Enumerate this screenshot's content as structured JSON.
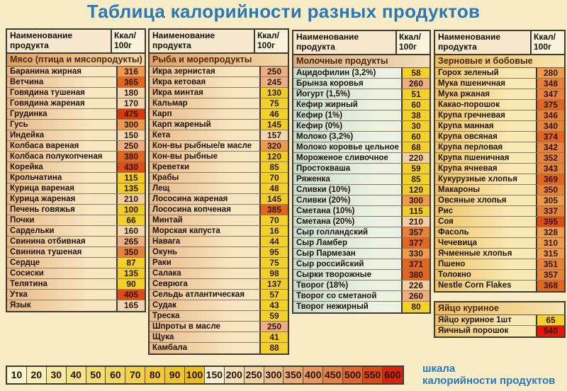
{
  "title": "Таблица калорийности разных продуктов",
  "header": {
    "name_line1": "Наименование",
    "name_line2": "продукта",
    "kcal_line1": "Ккал/",
    "kcal_line2": "100г"
  },
  "tables": [
    {
      "section": "Мясо (птица и мясопродукты)",
      "theme": "meat",
      "has_header": true,
      "slot": "col1",
      "rows": [
        [
          "Баранина жирная",
          316
        ],
        [
          "Ветчина",
          365
        ],
        [
          "Говядина тушеная",
          180
        ],
        [
          "Говядина жареная",
          170
        ],
        [
          "Грудинка",
          475
        ],
        [
          "Гусь",
          300
        ],
        [
          "Индейка",
          150
        ],
        [
          "Колбаса вареная",
          250
        ],
        [
          "Колбаса полукопченая",
          380
        ],
        [
          "Корейка",
          430
        ],
        [
          "Крольчатина",
          115
        ],
        [
          "Курица вареная",
          135
        ],
        [
          "Курица жареная",
          210
        ],
        [
          "Печень говяжья",
          100
        ],
        [
          "Почки",
          66
        ],
        [
          "Сардельки",
          160
        ],
        [
          "Свинина отбивная",
          265
        ],
        [
          "Свинина тушеная",
          350
        ],
        [
          "Сердце",
          87
        ],
        [
          "Сосиски",
          135
        ],
        [
          "Телятина",
          90
        ],
        [
          "Утка",
          405
        ],
        [
          "Язык",
          165
        ]
      ]
    },
    {
      "section": "Рыба и морепродукты",
      "theme": "fish",
      "has_header": true,
      "slot": "col2",
      "rows": [
        [
          "Икра зернистая",
          250
        ],
        [
          "Икра кетовая",
          245
        ],
        [
          "Икра минтая",
          130
        ],
        [
          "Кальмар",
          75
        ],
        [
          "Карп",
          46
        ],
        [
          "Карп жареный",
          145
        ],
        [
          "Кета",
          157
        ],
        [
          "Кон-вы рыбные/в масле",
          320
        ],
        [
          "Кон-вы рыбные",
          120
        ],
        [
          "Креветки",
          85
        ],
        [
          "Крабы",
          70
        ],
        [
          "Лещ",
          48
        ],
        [
          "Лососина жареная",
          145
        ],
        [
          "Лососина копченая",
          385
        ],
        [
          "Минтай",
          70
        ],
        [
          "Морская капуста",
          16
        ],
        [
          "Навага",
          44
        ],
        [
          "Окунь",
          95
        ],
        [
          "Раки",
          75
        ],
        [
          "Салака",
          98
        ],
        [
          "Севрюга",
          137
        ],
        [
          "Сельдь атлантическая",
          57
        ],
        [
          "Судак",
          43
        ],
        [
          "Треска",
          59
        ],
        [
          "Шпроты в масле",
          250
        ],
        [
          "Щука",
          41
        ],
        [
          "Камбала",
          88
        ]
      ]
    },
    {
      "section": "Молочные продукты",
      "theme": "dairy",
      "has_header": true,
      "slot": "col3",
      "rows": [
        [
          "Ацидофилин (3,2%)",
          58
        ],
        [
          "Брынза коровья",
          260
        ],
        [
          "Йогурт (1,5%)",
          51
        ],
        [
          "Кефир жирный",
          60
        ],
        [
          "Кефир (1%)",
          38
        ],
        [
          "Кефир (0%)",
          30
        ],
        [
          "Молоко (3,2%)",
          60
        ],
        [
          "Молоко коровье цельное",
          68
        ],
        [
          "Мороженое сливочное",
          220
        ],
        [
          "Простокваша",
          59
        ],
        [
          "Ряженка",
          85
        ],
        [
          "Сливки (10%)",
          120
        ],
        [
          "Сливки (20%)",
          300
        ],
        [
          "Сметана (10%)",
          115
        ],
        [
          "Сметана (20%)",
          210
        ],
        [
          "Сыр голландский",
          357
        ],
        [
          "Сыр Ламбер",
          377
        ],
        [
          "Сыр Пармезан",
          330
        ],
        [
          "Сыр российский",
          371
        ],
        [
          "Сырки творожные",
          380
        ],
        [
          "Творог (18%)",
          226
        ],
        [
          "Творог со сметаной",
          260
        ],
        [
          "Творог нежирный",
          80
        ]
      ]
    },
    {
      "section": "Зерновые и бобовые",
      "theme": "grain",
      "has_header": true,
      "slot": "col4",
      "rows": [
        [
          "Горох зеленый",
          280
        ],
        [
          "Мука пшеничная",
          348
        ],
        [
          "Мука ржаная",
          347
        ],
        [
          "Какао-порошок",
          375
        ],
        [
          "Крупа гречневая",
          346
        ],
        [
          "Крупа манная",
          340
        ],
        [
          "Крупа овсяная",
          374
        ],
        [
          "Крупа перловая",
          342
        ],
        [
          "Крупа пшеничная",
          352
        ],
        [
          "Крупа ячневая",
          343
        ],
        [
          "Кукурузные хлопья",
          369
        ],
        [
          "Макароны",
          350
        ],
        [
          "Овсяные хлопья",
          305
        ],
        [
          "Рис",
          337
        ],
        [
          "Соя",
          395
        ],
        [
          "Фасоль",
          328
        ],
        [
          "Чечевица",
          310
        ],
        [
          "Ячменные хлопья",
          315
        ],
        [
          "Пшено",
          351
        ],
        [
          "Толокно",
          357
        ],
        [
          "Nestle Corn Flakes",
          368
        ]
      ]
    },
    {
      "section": "Яйцо куриное",
      "theme": "egg",
      "has_header": false,
      "slot": "col4",
      "rows": [
        [
          "Яйцо куриное 1шт",
          65
        ],
        [
          "Яичный порошок",
          540
        ]
      ]
    }
  ],
  "scale": {
    "label_line1": "шкала",
    "label_line2": "калорийности продуктов",
    "stops": [
      {
        "value": "10",
        "color": "#f9f3d0"
      },
      {
        "value": "20",
        "color": "#f8eeb6"
      },
      {
        "value": "30",
        "color": "#f7e9a0"
      },
      {
        "value": "40",
        "color": "#f6e38a"
      },
      {
        "value": "50",
        "color": "#f4de74"
      },
      {
        "value": "60",
        "color": "#f3d85f"
      },
      {
        "value": "70",
        "color": "#f2d24b"
      },
      {
        "value": "80",
        "color": "#f0cb39"
      },
      {
        "value": "90",
        "color": "#eec42a"
      },
      {
        "value": "100",
        "color": "#ecbd1e"
      },
      {
        "value": "150",
        "color": "#f7ecd2"
      },
      {
        "value": "200",
        "color": "#f4deb7"
      },
      {
        "value": "250",
        "color": "#f1d1a1"
      },
      {
        "value": "300",
        "color": "#edc28d"
      },
      {
        "value": "350",
        "color": "#eaae77"
      },
      {
        "value": "400",
        "color": "#e7985d"
      },
      {
        "value": "450",
        "color": "#e38146"
      },
      {
        "value": "500",
        "color": "#e0682e"
      },
      {
        "value": "550",
        "color": "#dc4a1a"
      },
      {
        "value": "600",
        "color": "#d8230d"
      }
    ]
  },
  "colors": {
    "title": "#2878b8",
    "background": "#f8ecc6",
    "scale_label": "#2878b8",
    "value_buckets": [
      {
        "max": 99,
        "color": "#f2d22a"
      },
      {
        "max": 148,
        "color": "#f0cd28"
      },
      {
        "max": 189,
        "color": "#f3d5ad"
      },
      {
        "max": 232,
        "color": "#f1cfa2"
      },
      {
        "max": 272,
        "color": "#edaf81"
      },
      {
        "max": 332,
        "color": "#ef9b4c"
      },
      {
        "max": 362,
        "color": "#e8813a"
      },
      {
        "max": 392,
        "color": "#e36620"
      },
      {
        "max": 442,
        "color": "#de4d15"
      },
      {
        "max": 505,
        "color": "#da380f"
      },
      {
        "max": 9999,
        "color": "#e3170a"
      }
    ]
  }
}
